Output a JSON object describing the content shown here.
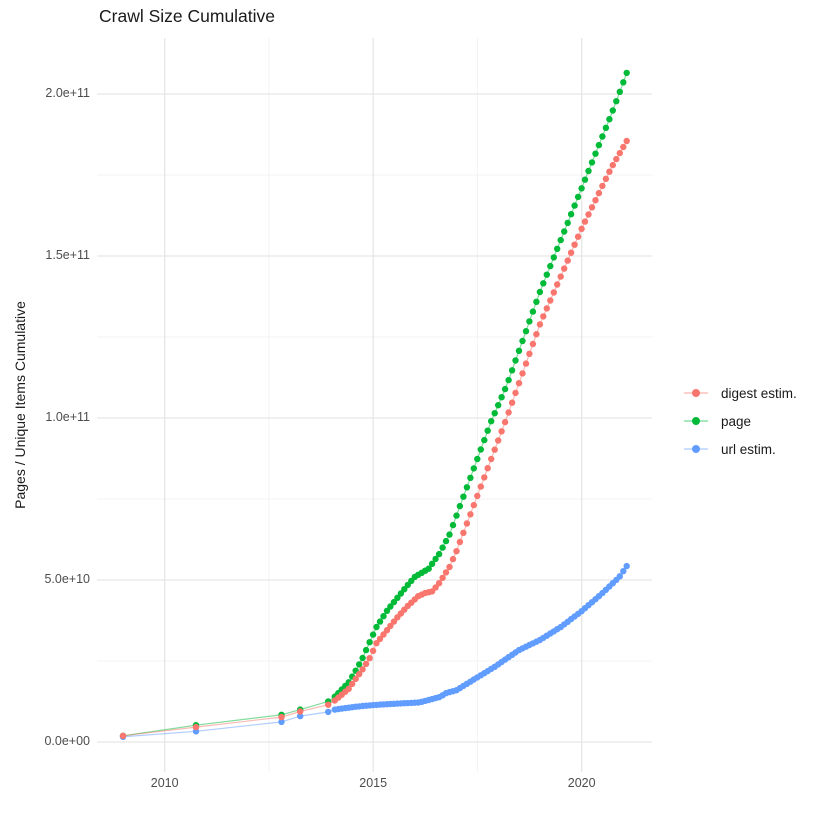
{
  "chart": {
    "title": "Crawl Size Cumulative",
    "y_axis_title": "Pages / Unique Items Cumulative"
  },
  "legend": {
    "items": [
      {
        "label": "digest estim.",
        "color": "#F8766D"
      },
      {
        "label": "page",
        "color": "#00BA38"
      },
      {
        "label": "url estim.",
        "color": "#619CFF"
      }
    ]
  },
  "chart_data": {
    "type": "scatter",
    "title": "Crawl Size Cumulative",
    "xlabel": "",
    "ylabel": "Pages / Unique Items Cumulative",
    "legend_position": "right",
    "grid": true,
    "background": "#ffffff",
    "units_note": "values expressed in billions (1e9 items); y axis shows scientific notation",
    "xlim": [
      2008.4,
      2021.7
    ],
    "ylim_e9": [
      -10,
      217
    ],
    "x_ticks": {
      "major": [
        {
          "value": 2010,
          "label": "2010"
        },
        {
          "value": 2015,
          "label": "2015"
        },
        {
          "value": 2020,
          "label": "2020"
        }
      ],
      "minor": [
        2012.5,
        2017.5
      ]
    },
    "y_ticks": {
      "major": [
        {
          "value_e9": 0,
          "label": "0.0e+00"
        },
        {
          "value_e9": 50,
          "label": "5.0e+10"
        },
        {
          "value_e9": 100,
          "label": "1.0e+11"
        },
        {
          "value_e9": 150,
          "label": "1.5e+11"
        },
        {
          "value_e9": 200,
          "label": "2.0e+11"
        }
      ],
      "minor_e9": [
        25,
        75,
        125,
        175
      ]
    },
    "sampling": {
      "early_dates": [
        2009.0,
        2010.75,
        2012.8,
        2013.25,
        2013.92
      ],
      "monthly_start": 2014.08,
      "monthly_end": 2021.08,
      "step_years": 0.083333
    },
    "series": [
      {
        "name": "digest estim.",
        "color": "#F8766D",
        "keyframes_year_value_e9": [
          [
            2009.0,
            1.9
          ],
          [
            2010.75,
            4.6
          ],
          [
            2012.8,
            7.7
          ],
          [
            2013.25,
            9.4
          ],
          [
            2013.92,
            11.5
          ],
          [
            2014.08,
            12.8
          ],
          [
            2014.42,
            16.5
          ],
          [
            2014.58,
            19.5
          ],
          [
            2014.75,
            22.5
          ],
          [
            2014.92,
            26.0
          ],
          [
            2015.08,
            30.5
          ],
          [
            2015.33,
            34.5
          ],
          [
            2015.58,
            38.5
          ],
          [
            2015.83,
            42.0
          ],
          [
            2016.08,
            45.0
          ],
          [
            2016.25,
            46.0
          ],
          [
            2016.42,
            46.5
          ],
          [
            2016.58,
            49.0
          ],
          [
            2016.83,
            54.0
          ],
          [
            2017.0,
            59.0
          ],
          [
            2018.2,
            100.0
          ],
          [
            2019.0,
            129.0
          ],
          [
            2020.0,
            158.5
          ],
          [
            2020.7,
            177.0
          ],
          [
            2021.08,
            185.5
          ]
        ]
      },
      {
        "name": "page",
        "color": "#00BA38",
        "keyframes_year_value_e9": [
          [
            2009.0,
            1.9
          ],
          [
            2010.75,
            5.2
          ],
          [
            2012.8,
            8.4
          ],
          [
            2013.25,
            10.0
          ],
          [
            2013.92,
            12.5
          ],
          [
            2014.08,
            14.0
          ],
          [
            2014.42,
            18.5
          ],
          [
            2014.58,
            22.0
          ],
          [
            2014.75,
            26.0
          ],
          [
            2014.92,
            31.0
          ],
          [
            2015.08,
            35.5
          ],
          [
            2015.33,
            40.5
          ],
          [
            2015.58,
            44.5
          ],
          [
            2015.83,
            48.5
          ],
          [
            2016.0,
            51.0
          ],
          [
            2016.33,
            53.5
          ],
          [
            2016.58,
            58.0
          ],
          [
            2016.83,
            64.0
          ],
          [
            2017.0,
            70.0
          ],
          [
            2017.83,
            99.0
          ],
          [
            2018.2,
            110.0
          ],
          [
            2019.0,
            139.0
          ],
          [
            2020.0,
            171.0
          ],
          [
            2020.75,
            195.0
          ],
          [
            2021.08,
            206.5
          ]
        ]
      },
      {
        "name": "url estim.",
        "color": "#619CFF",
        "keyframes_year_value_e9": [
          [
            2009.0,
            1.6
          ],
          [
            2010.75,
            3.3
          ],
          [
            2012.8,
            6.2
          ],
          [
            2013.25,
            8.0
          ],
          [
            2013.92,
            9.3
          ],
          [
            2014.08,
            10.0
          ],
          [
            2014.58,
            10.9
          ],
          [
            2015.0,
            11.4
          ],
          [
            2015.5,
            11.8
          ],
          [
            2016.1,
            12.2
          ],
          [
            2016.4,
            13.2
          ],
          [
            2016.6,
            13.9
          ],
          [
            2016.75,
            15.1
          ],
          [
            2017.0,
            16.0
          ],
          [
            2017.2,
            17.6
          ],
          [
            2017.9,
            23.1
          ],
          [
            2018.5,
            28.4
          ],
          [
            2019.0,
            31.5
          ],
          [
            2019.5,
            35.5
          ],
          [
            2020.0,
            40.4
          ],
          [
            2020.45,
            45.4
          ],
          [
            2020.9,
            50.9
          ],
          [
            2021.08,
            54.3
          ]
        ]
      }
    ]
  }
}
